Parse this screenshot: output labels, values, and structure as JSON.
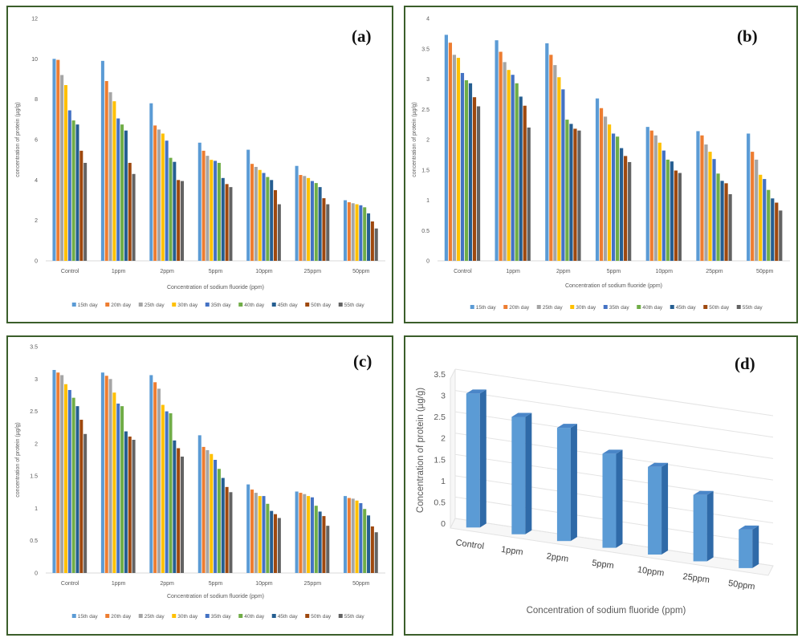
{
  "panels": {
    "a": {
      "label": "(a)"
    },
    "b": {
      "label": "(b)"
    },
    "c": {
      "label": "(c)"
    },
    "d": {
      "label": "(d)"
    }
  },
  "chart_data": [
    {
      "id": "a",
      "type": "bar",
      "categories": [
        "Control",
        "1ppm",
        "2ppm",
        "5ppm",
        "10ppm",
        "25ppm",
        "50ppm"
      ],
      "series": [
        {
          "name": "15th day",
          "color": "#5b9bd5",
          "values": [
            10.0,
            9.9,
            7.8,
            5.85,
            5.5,
            4.7,
            3.0
          ]
        },
        {
          "name": "20th day",
          "color": "#ed7d31",
          "values": [
            9.95,
            8.9,
            6.7,
            5.45,
            4.8,
            4.25,
            2.9
          ]
        },
        {
          "name": "25th day",
          "color": "#a5a5a5",
          "values": [
            9.2,
            8.35,
            6.5,
            5.2,
            4.65,
            4.2,
            2.85
          ]
        },
        {
          "name": "30th day",
          "color": "#ffc000",
          "values": [
            8.7,
            7.9,
            6.3,
            5.0,
            4.5,
            4.1,
            2.8
          ]
        },
        {
          "name": "35th day",
          "color": "#4472c4",
          "values": [
            7.45,
            7.05,
            5.95,
            4.95,
            4.35,
            3.95,
            2.75
          ]
        },
        {
          "name": "40th day",
          "color": "#70ad47",
          "values": [
            6.95,
            6.75,
            5.1,
            4.85,
            4.15,
            3.85,
            2.65
          ]
        },
        {
          "name": "45th day",
          "color": "#255e91",
          "values": [
            6.75,
            6.45,
            4.9,
            4.1,
            4.0,
            3.65,
            2.35
          ]
        },
        {
          "name": "50th day",
          "color": "#9e480e",
          "values": [
            5.45,
            4.85,
            4.0,
            3.8,
            3.5,
            3.1,
            1.95
          ]
        },
        {
          "name": "55th day",
          "color": "#636363",
          "values": [
            4.85,
            4.3,
            3.95,
            3.65,
            2.8,
            2.8,
            1.6
          ]
        }
      ],
      "ylim": [
        0,
        12
      ],
      "yticks": [
        "0",
        "2",
        "4",
        "6",
        "8",
        "10",
        "12"
      ],
      "xlabel": "Concentration of sodium fluoride (ppm)",
      "ylabel": "concentration of protein (µg/g)",
      "legend": "bottom"
    },
    {
      "id": "b",
      "type": "bar",
      "categories": [
        "Control",
        "1ppm",
        "2ppm",
        "5ppm",
        "10ppm",
        "25ppm",
        "50ppm"
      ],
      "series": [
        {
          "name": "15th day",
          "color": "#5b9bd5",
          "values": [
            3.73,
            3.64,
            3.59,
            2.68,
            2.21,
            2.14,
            2.1
          ]
        },
        {
          "name": "20th day",
          "color": "#ed7d31",
          "values": [
            3.6,
            3.45,
            3.4,
            2.52,
            2.15,
            2.07,
            1.8
          ]
        },
        {
          "name": "25th day",
          "color": "#a5a5a5",
          "values": [
            3.4,
            3.28,
            3.23,
            2.38,
            2.07,
            1.92,
            1.67
          ]
        },
        {
          "name": "30th day",
          "color": "#ffc000",
          "values": [
            3.35,
            3.15,
            3.03,
            2.25,
            1.95,
            1.8,
            1.42
          ]
        },
        {
          "name": "35th day",
          "color": "#4472c4",
          "values": [
            3.1,
            3.07,
            2.83,
            2.1,
            1.82,
            1.68,
            1.35
          ]
        },
        {
          "name": "40th day",
          "color": "#70ad47",
          "values": [
            2.98,
            2.93,
            2.33,
            2.05,
            1.67,
            1.44,
            1.17
          ]
        },
        {
          "name": "45th day",
          "color": "#255e91",
          "values": [
            2.93,
            2.71,
            2.26,
            1.86,
            1.64,
            1.32,
            1.03
          ]
        },
        {
          "name": "50th day",
          "color": "#9e480e",
          "values": [
            2.7,
            2.56,
            2.18,
            1.73,
            1.49,
            1.28,
            0.96
          ]
        },
        {
          "name": "55th day",
          "color": "#636363",
          "values": [
            2.55,
            2.2,
            2.15,
            1.63,
            1.45,
            1.1,
            0.83
          ]
        }
      ],
      "ylim": [
        0,
        4
      ],
      "yticks": [
        "0",
        "0.5",
        "1",
        "1.5",
        "2",
        "2.5",
        "3",
        "3.5",
        "4"
      ],
      "xlabel": "Concentration of sodium fluoride (ppm)",
      "ylabel": "concentration of protein (µg/g)",
      "legend": "bottom"
    },
    {
      "id": "c",
      "type": "bar",
      "categories": [
        "Control",
        "1ppm",
        "2ppm",
        "5ppm",
        "10ppm",
        "25ppm",
        "50ppm"
      ],
      "series": [
        {
          "name": "15th day",
          "color": "#5b9bd5",
          "values": [
            3.14,
            3.1,
            3.06,
            2.13,
            1.37,
            1.26,
            1.19
          ]
        },
        {
          "name": "20th day",
          "color": "#ed7d31",
          "values": [
            3.1,
            3.05,
            2.95,
            1.95,
            1.29,
            1.24,
            1.16
          ]
        },
        {
          "name": "25th day",
          "color": "#a5a5a5",
          "values": [
            3.06,
            3.0,
            2.85,
            1.9,
            1.24,
            1.22,
            1.15
          ]
        },
        {
          "name": "30th day",
          "color": "#ffc000",
          "values": [
            2.92,
            2.79,
            2.6,
            1.84,
            1.19,
            1.19,
            1.12
          ]
        },
        {
          "name": "35th day",
          "color": "#4472c4",
          "values": [
            2.83,
            2.62,
            2.5,
            1.75,
            1.19,
            1.17,
            1.08
          ]
        },
        {
          "name": "40th day",
          "color": "#70ad47",
          "values": [
            2.71,
            2.58,
            2.47,
            1.61,
            1.07,
            1.04,
            0.99
          ]
        },
        {
          "name": "45th day",
          "color": "#255e91",
          "values": [
            2.58,
            2.19,
            2.05,
            1.47,
            0.96,
            0.95,
            0.89
          ]
        },
        {
          "name": "50th day",
          "color": "#9e480e",
          "values": [
            2.37,
            2.11,
            1.93,
            1.33,
            0.91,
            0.88,
            0.72
          ]
        },
        {
          "name": "55th day",
          "color": "#636363",
          "values": [
            2.15,
            2.06,
            1.8,
            1.25,
            0.85,
            0.73,
            0.63
          ]
        }
      ],
      "ylim": [
        0,
        3.5
      ],
      "yticks": [
        "0",
        "0.5",
        "1",
        "1.5",
        "2",
        "2.5",
        "3",
        "3.5"
      ],
      "xlabel": "Concentration of sodium fluoride (ppm)",
      "ylabel": "concentration of protein (µg/g)",
      "legend": "bottom"
    },
    {
      "id": "d",
      "type": "bar",
      "style": "3d-column",
      "categories": [
        "Control",
        "1ppm",
        "2ppm",
        "5ppm",
        "10ppm",
        "25ppm",
        "50ppm"
      ],
      "values": [
        3.14,
        2.75,
        2.65,
        2.2,
        2.05,
        1.55,
        0.9
      ],
      "color": "#5b9bd5",
      "ylim": [
        0,
        3.5
      ],
      "yticks": [
        "0",
        "0.5",
        "1",
        "1.5",
        "2",
        "2.5",
        "3",
        "3.5"
      ],
      "xlabel": "Concentration of sodium fluoride (ppm)",
      "ylabel": "Concentration of protein (µg/g)"
    }
  ]
}
